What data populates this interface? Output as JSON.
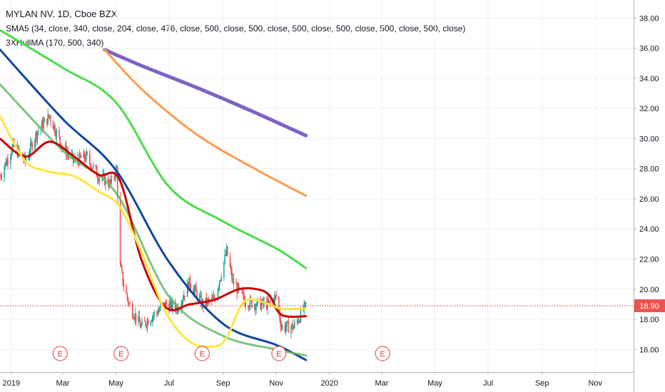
{
  "legend": {
    "title": "MYLAN NV, 1D, Cboe BZX",
    "sma_line": "SMA5 (34, close, 340, close, 204, close, 476, close, 500, close, 500, close, 500, close, 500, close, 500, close, 500, close)",
    "hull_line": "3XHullMA (170, 500, 340)"
  },
  "price_tag": "18.90",
  "colors": {
    "price_line": "#d32f2f",
    "price_tag_bg": "#ef5350",
    "candle_up": "#26a69a",
    "candle_down": "#ef5350",
    "sma_green": "#66bb6a",
    "sma_blue": "#0d47a1",
    "sma_lime": "#4cdc4c",
    "sma_orange": "#ff9a50",
    "sma_purple": "#7e63c4",
    "hull_red": "#cc0000",
    "hull_yellow": "#ffe640",
    "event_marker": "#e53935",
    "grid": "#eef0f3",
    "axis_text": "#131722"
  },
  "event_marker_label": "E",
  "chart_data": {
    "type": "line",
    "title": "MYLAN NV, 1D, Cboe BZX",
    "y_axis": {
      "ticks": [
        16,
        18,
        20,
        22,
        24,
        26,
        28,
        30,
        32,
        34,
        36,
        38
      ],
      "tick_labels": [
        "16.00",
        "18.00",
        "20.00",
        "22.00",
        "24.00",
        "26.00",
        "28.00",
        "30.00",
        "32.00",
        "34.00",
        "36.00",
        "38.00"
      ],
      "ylim": [
        14.5,
        39.2
      ]
    },
    "x_axis": {
      "labels": [
        "2019",
        "Mar",
        "May",
        "Jul",
        "Sep",
        "Nov",
        "2020",
        "Mar",
        "May",
        "Jul",
        "Sep",
        "Nov"
      ],
      "label_dates": [
        "2019-01-01",
        "2019-03-01",
        "2019-05-01",
        "2019-07-01",
        "2019-09-01",
        "2019-11-01",
        "2020-01-01",
        "2020-03-01",
        "2020-05-01",
        "2020-07-01",
        "2020-09-01",
        "2020-11-01"
      ],
      "xlim": [
        "2018-12-19",
        "2020-12-15"
      ]
    },
    "grid": true,
    "last_price": 18.9,
    "earnings_dates": [
      "2019-02-26",
      "2019-05-07",
      "2019-08-08",
      "2019-11-04",
      "2020-03-02"
    ],
    "price_series": {
      "name": "MYLAN NV",
      "x": [
        "2018-12-19",
        "2019-01-03",
        "2019-01-17",
        "2019-01-31",
        "2019-02-14",
        "2019-02-28",
        "2019-03-14",
        "2019-03-28",
        "2019-04-11",
        "2019-04-25",
        "2019-05-02",
        "2019-05-06",
        "2019-05-09",
        "2019-05-16",
        "2019-05-30",
        "2019-06-13",
        "2019-06-27",
        "2019-07-11",
        "2019-07-25",
        "2019-08-08",
        "2019-08-22",
        "2019-09-05",
        "2019-09-12",
        "2019-09-26",
        "2019-10-10",
        "2019-10-24",
        "2019-11-01",
        "2019-11-07",
        "2019-11-21",
        "2019-12-05"
      ],
      "values": [
        27.5,
        29.5,
        28.5,
        30.5,
        31.5,
        29.5,
        28.5,
        28.8,
        27.5,
        27.0,
        28.0,
        21.5,
        20.5,
        19.0,
        17.5,
        18.3,
        19.0,
        18.8,
        20.5,
        19.0,
        19.3,
        22.5,
        20.5,
        19.2,
        19.0,
        19.0,
        19.5,
        17.5,
        17.5,
        18.9
      ]
    },
    "series": [
      {
        "color": "#7e63c4",
        "x": [
          "2019-04-18",
          "2019-06-01",
          "2019-08-01",
          "2019-10-01",
          "2019-12-05"
        ],
        "values": [
          35.9,
          34.8,
          33.4,
          31.9,
          30.2
        ]
      },
      {
        "color": "#ff9a50",
        "x": [
          "2019-04-18",
          "2019-06-01",
          "2019-08-01",
          "2019-10-01",
          "2019-12-05"
        ],
        "values": [
          35.9,
          33.2,
          30.3,
          28.2,
          26.2
        ]
      },
      {
        "color": "#4cdc4c",
        "x": [
          "2018-12-19",
          "2019-03-01",
          "2019-05-01",
          "2019-07-01",
          "2019-09-01",
          "2019-11-01",
          "2019-12-05"
        ],
        "values": [
          37.2,
          34.7,
          32.4,
          26.8,
          24.5,
          22.7,
          21.4
        ]
      },
      {
        "color": "#0d47a1",
        "x": [
          "2018-12-19",
          "2019-03-01",
          "2019-05-01",
          "2019-07-01",
          "2019-09-01",
          "2019-11-01",
          "2019-12-05"
        ],
        "values": [
          35.9,
          31.3,
          27.9,
          21.8,
          17.7,
          16.3,
          15.3
        ]
      },
      {
        "color": "#66bb6a",
        "x": [
          "2018-12-19",
          "2019-03-01",
          "2019-05-01",
          "2019-07-01",
          "2019-09-01",
          "2019-11-01",
          "2019-12-05"
        ],
        "values": [
          33.6,
          29.2,
          26.4,
          19.5,
          16.9,
          16.0,
          15.6
        ]
      },
      {
        "color": "#cc0000",
        "x": [
          "2018-12-19",
          "2019-01-17",
          "2019-02-14",
          "2019-03-14",
          "2019-04-11",
          "2019-05-05",
          "2019-05-30",
          "2019-06-27",
          "2019-07-25",
          "2019-08-22",
          "2019-09-19",
          "2019-10-10",
          "2019-10-24",
          "2019-11-07",
          "2019-12-05"
        ],
        "values": [
          30.0,
          28.8,
          29.8,
          28.8,
          27.6,
          27.3,
          22.0,
          18.8,
          19.0,
          19.3,
          20.0,
          20.0,
          19.6,
          18.3,
          18.2
        ]
      },
      {
        "color": "#ffe640",
        "x": [
          "2018-12-19",
          "2019-01-17",
          "2019-02-14",
          "2019-03-14",
          "2019-04-11",
          "2019-05-05",
          "2019-05-30",
          "2019-06-27",
          "2019-07-25",
          "2019-08-22",
          "2019-09-05",
          "2019-09-26",
          "2019-10-24",
          "2019-11-07",
          "2019-12-05"
        ],
        "values": [
          31.5,
          28.5,
          27.8,
          27.5,
          26.5,
          25.5,
          22.5,
          18.5,
          16.5,
          16.2,
          16.8,
          19.2,
          19.0,
          18.7,
          18.7
        ]
      }
    ]
  }
}
